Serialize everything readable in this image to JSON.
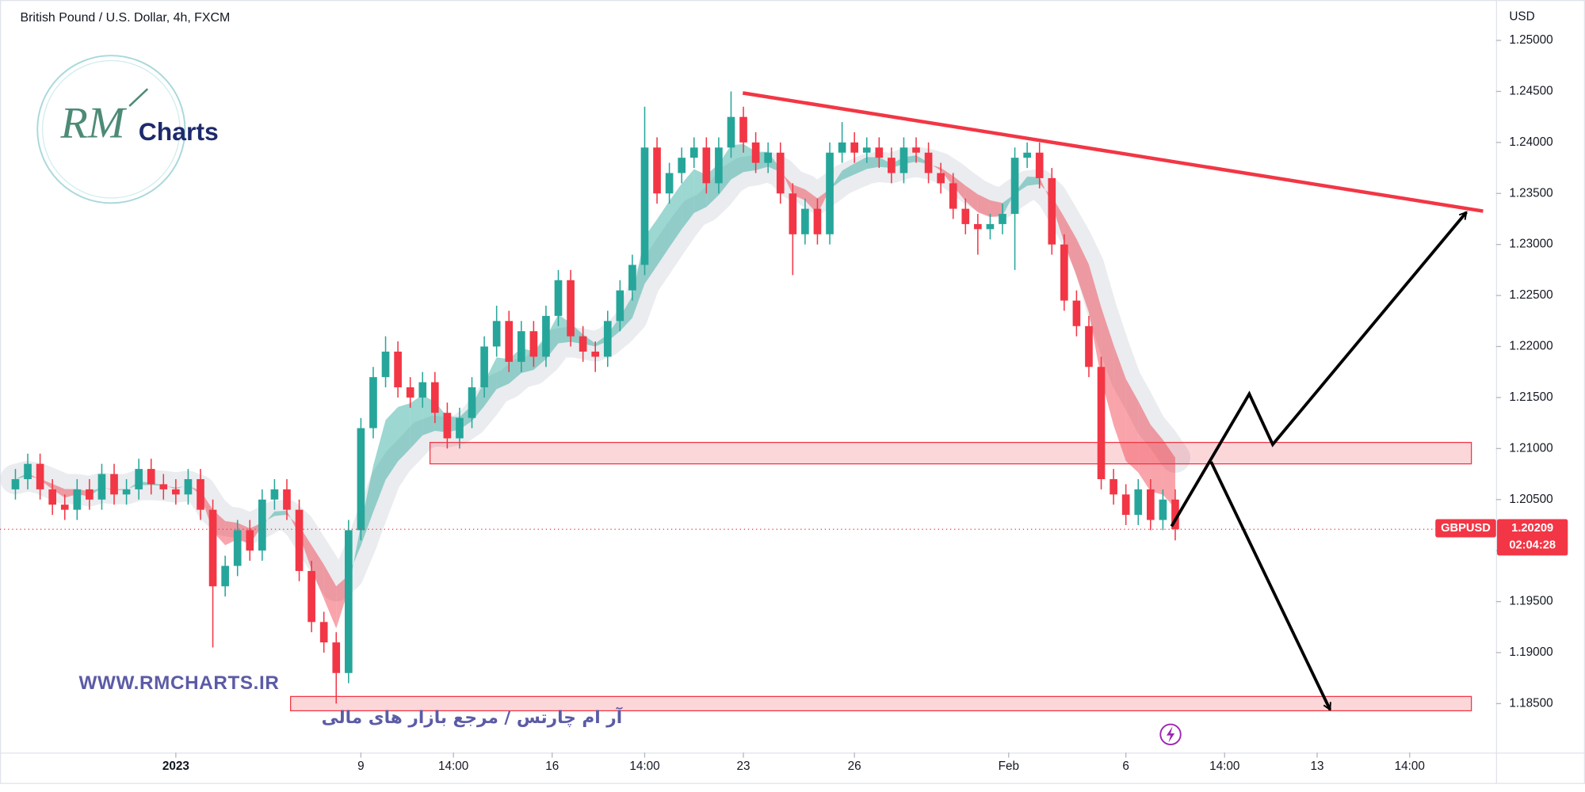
{
  "chart_data": {
    "type": "candlestick",
    "title": "British Pound / U.S. Dollar, 4h, FXCM",
    "currency_label": "USD",
    "symbol": "GBPUSD",
    "countdown": "02:04:28",
    "up_color": "#26a69a",
    "down_color": "#f23645",
    "x": [
      0,
      2,
      4,
      6,
      8,
      10,
      12,
      14,
      16,
      18,
      20,
      22,
      24,
      26,
      28,
      30,
      32,
      34,
      36,
      38,
      40,
      42,
      44,
      46,
      48,
      50,
      52,
      54,
      56,
      58,
      60,
      62,
      64,
      66,
      68,
      70,
      72,
      74,
      76,
      78,
      80,
      82,
      84,
      86,
      88,
      90,
      92,
      94,
      96,
      98,
      100,
      102,
      104,
      106,
      108,
      110,
      112,
      114,
      116,
      118,
      120,
      122,
      124,
      126,
      128,
      130,
      132,
      134,
      136,
      138,
      140,
      142,
      144,
      146,
      148,
      150,
      152,
      154,
      156,
      158,
      160,
      162,
      164,
      166,
      168,
      170,
      172,
      174,
      176,
      178,
      180,
      182,
      184,
      186,
      188
    ],
    "open": [
      1.206,
      1.207,
      1.2085,
      1.206,
      1.2045,
      1.204,
      1.206,
      1.205,
      1.2075,
      1.2055,
      1.206,
      1.208,
      1.2065,
      1.206,
      1.2055,
      1.207,
      1.204,
      1.1965,
      1.1985,
      1.202,
      1.2,
      1.205,
      1.206,
      1.204,
      1.198,
      1.193,
      1.191,
      1.188,
      1.202,
      1.212,
      1.217,
      1.2195,
      1.216,
      1.215,
      1.2165,
      1.2135,
      1.211,
      1.213,
      1.216,
      1.22,
      1.2225,
      1.2185,
      1.2215,
      1.219,
      1.223,
      1.2265,
      1.221,
      1.2195,
      1.219,
      1.2225,
      1.2255,
      1.228,
      1.2395,
      1.235,
      1.237,
      1.2385,
      1.2395,
      1.236,
      1.2395,
      1.2425,
      1.24,
      1.238,
      1.239,
      1.235,
      1.231,
      1.2335,
      1.231,
      1.239,
      1.24,
      1.239,
      1.2395,
      1.2385,
      1.237,
      1.2395,
      1.239,
      1.237,
      1.236,
      1.2335,
      1.232,
      1.2315,
      1.232,
      1.233,
      1.2385,
      1.239,
      1.2365,
      1.23,
      1.2245,
      1.222,
      1.218,
      1.207,
      1.2055,
      1.2035,
      1.206,
      1.203,
      1.205
    ],
    "high": [
      1.208,
      1.2095,
      1.2095,
      1.207,
      1.2055,
      1.207,
      1.207,
      1.2085,
      1.2085,
      1.207,
      1.209,
      1.209,
      1.2075,
      1.207,
      1.208,
      1.208,
      1.205,
      1.1995,
      1.203,
      1.203,
      1.206,
      1.207,
      1.207,
      1.205,
      1.199,
      1.194,
      1.192,
      1.203,
      1.213,
      1.218,
      1.221,
      1.2205,
      1.217,
      1.2175,
      1.2175,
      1.2145,
      1.214,
      1.217,
      1.221,
      1.224,
      1.2235,
      1.2225,
      1.2225,
      1.224,
      1.2275,
      1.2275,
      1.222,
      1.2205,
      1.2235,
      1.2265,
      1.229,
      1.2435,
      1.2405,
      1.238,
      1.2395,
      1.2405,
      1.2405,
      1.2405,
      1.245,
      1.2435,
      1.241,
      1.24,
      1.24,
      1.236,
      1.2345,
      1.2345,
      1.24,
      1.242,
      1.241,
      1.2405,
      1.2405,
      1.2395,
      1.2405,
      1.2405,
      1.24,
      1.238,
      1.237,
      1.2345,
      1.233,
      1.233,
      1.234,
      1.2395,
      1.24,
      1.24,
      1.2375,
      1.231,
      1.2255,
      1.223,
      1.219,
      1.208,
      1.2065,
      1.207,
      1.207,
      1.206,
      1.206
    ],
    "low": [
      1.205,
      1.206,
      1.205,
      1.2035,
      1.203,
      1.203,
      1.204,
      1.204,
      1.2045,
      1.2045,
      1.205,
      1.2055,
      1.205,
      1.2045,
      1.2045,
      1.203,
      1.1905,
      1.1955,
      1.1975,
      1.199,
      1.199,
      1.204,
      1.203,
      1.197,
      1.192,
      1.19,
      1.185,
      1.187,
      1.201,
      1.211,
      1.216,
      1.215,
      1.214,
      1.214,
      1.2125,
      1.21,
      1.21,
      1.212,
      1.215,
      1.219,
      1.2175,
      1.2175,
      1.218,
      1.218,
      1.222,
      1.22,
      1.2185,
      1.2175,
      1.218,
      1.2215,
      1.2245,
      1.227,
      1.234,
      1.234,
      1.236,
      1.2375,
      1.235,
      1.235,
      1.2385,
      1.239,
      1.237,
      1.237,
      1.234,
      1.227,
      1.23,
      1.23,
      1.23,
      1.238,
      1.238,
      1.238,
      1.2375,
      1.236,
      1.236,
      1.238,
      1.236,
      1.235,
      1.2325,
      1.231,
      1.229,
      1.2305,
      1.231,
      1.2275,
      1.2375,
      1.2355,
      1.229,
      1.2235,
      1.221,
      1.217,
      1.206,
      1.2045,
      1.2025,
      1.2025,
      1.202,
      1.202,
      1.201
    ],
    "close": [
      1.207,
      1.2085,
      1.206,
      1.2045,
      1.204,
      1.206,
      1.205,
      1.2075,
      1.2055,
      1.206,
      1.208,
      1.2065,
      1.206,
      1.2055,
      1.207,
      1.204,
      1.1965,
      1.1985,
      1.202,
      1.2,
      1.205,
      1.206,
      1.204,
      1.198,
      1.193,
      1.191,
      1.188,
      1.202,
      1.212,
      1.217,
      1.2195,
      1.216,
      1.215,
      1.2165,
      1.2135,
      1.211,
      1.213,
      1.216,
      1.22,
      1.2225,
      1.2185,
      1.2215,
      1.219,
      1.223,
      1.2265,
      1.221,
      1.2195,
      1.219,
      1.2225,
      1.2255,
      1.228,
      1.2395,
      1.235,
      1.237,
      1.2385,
      1.2395,
      1.236,
      1.2395,
      1.2425,
      1.24,
      1.238,
      1.239,
      1.235,
      1.231,
      1.2335,
      1.231,
      1.239,
      1.24,
      1.239,
      1.2395,
      1.2385,
      1.237,
      1.2395,
      1.239,
      1.237,
      1.236,
      1.2335,
      1.232,
      1.2315,
      1.232,
      1.233,
      1.2385,
      1.239,
      1.2365,
      1.23,
      1.2245,
      1.222,
      1.218,
      1.207,
      1.2055,
      1.2035,
      1.206,
      1.203,
      1.205,
      1.20209
    ],
    "last_price": {
      "value": 1.20209,
      "label": "1.20209"
    },
    "xlim": [
      -2.5,
      240
    ],
    "ylim": [
      1.1802,
      1.25396
    ],
    "yticks": [
      {
        "value": 1.25,
        "label": "1.25000"
      },
      {
        "value": 1.245,
        "label": "1.24500"
      },
      {
        "value": 1.24,
        "label": "1.24000"
      },
      {
        "value": 1.235,
        "label": "1.23500"
      },
      {
        "value": 1.23,
        "label": "1.23000"
      },
      {
        "value": 1.225,
        "label": "1.22500"
      },
      {
        "value": 1.22,
        "label": "1.22000"
      },
      {
        "value": 1.215,
        "label": "1.21500"
      },
      {
        "value": 1.21,
        "label": "1.21000"
      },
      {
        "value": 1.205,
        "label": "1.20500"
      },
      {
        "value": 1.2,
        "label": "1.20000"
      },
      {
        "value": 1.195,
        "label": "1.19500"
      },
      {
        "value": 1.19,
        "label": "1.19000"
      },
      {
        "value": 1.185,
        "label": "1.18500"
      }
    ],
    "xticks": [
      {
        "value": 26,
        "label": "2023"
      },
      {
        "value": 56,
        "label": "9"
      },
      {
        "value": 71,
        "label": "14:00"
      },
      {
        "value": 87,
        "label": "16"
      },
      {
        "value": 102,
        "label": "14:00"
      },
      {
        "value": 118,
        "label": "23"
      },
      {
        "value": 136,
        "label": "26"
      },
      {
        "value": 161,
        "label": "Feb"
      },
      {
        "value": 180,
        "label": "6"
      },
      {
        "value": 196,
        "label": "14:00"
      },
      {
        "value": 211,
        "label": "13"
      },
      {
        "value": 226,
        "label": "14:00"
      }
    ],
    "zones": [
      {
        "x": [
          67.2,
          236
        ],
        "y": [
          1.2085,
          1.2106
        ]
      },
      {
        "x": [
          44.6,
          236
        ],
        "y": [
          1.1843,
          1.1857
        ]
      }
    ],
    "trendline": {
      "x": [
        117.9,
        237.9
      ],
      "y": [
        1.24485,
        1.23327
      ],
      "color": "#f23645"
    },
    "arrows": [
      {
        "x": [
          187.4,
          200,
          203.8,
          235.2
        ],
        "y": [
          1.20238,
          1.21535,
          1.2104,
          1.23317
        ]
      },
      {
        "x": [
          193.8,
          213.1
        ],
        "y": [
          1.2087,
          1.1844
        ]
      }
    ],
    "arrow_color": "#000000"
  },
  "watermark": {
    "logo_script": "RM",
    "logo_text": "Charts",
    "website": "WWW.RMCHARTS.IR",
    "tagline": "آر ام چارتس / مرجع بازار های مالی"
  }
}
